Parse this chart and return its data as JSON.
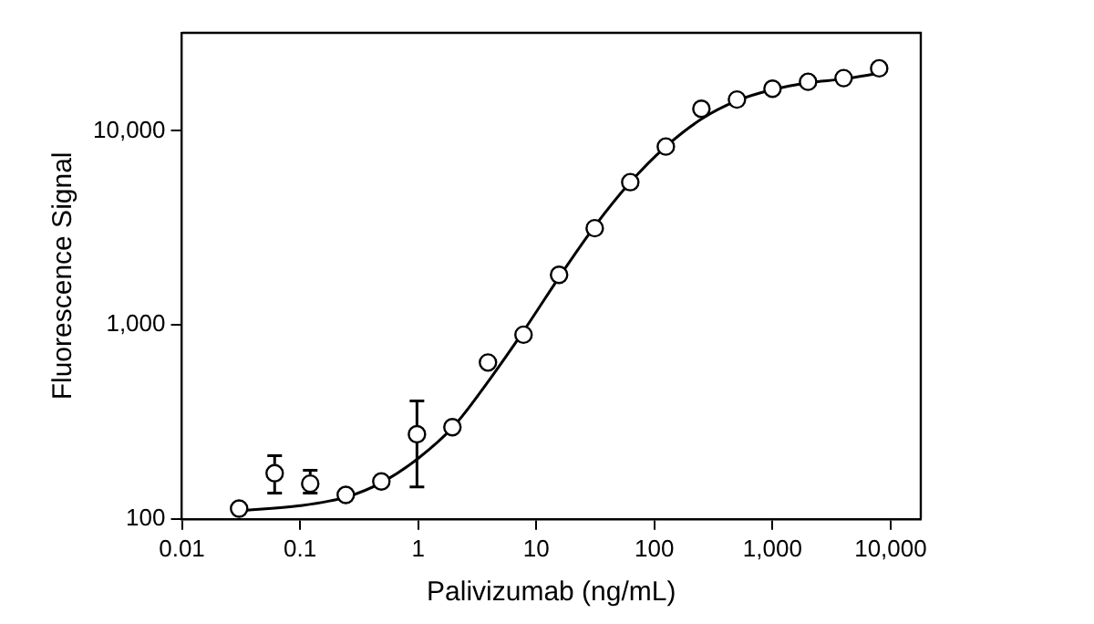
{
  "chart_data": {
    "type": "scatter",
    "xlabel": "Palivizumab (ng/mL)",
    "ylabel": "Fluorescence Signal",
    "log": "xy",
    "grid": false,
    "legend": false,
    "xlim": [
      0.01,
      18000
    ],
    "xticks": [
      0.01,
      0.1,
      1,
      10,
      100,
      {
        "value": 1000,
        "label": "1,000"
      },
      {
        "value": 10000,
        "label": "10,000"
      }
    ],
    "ylim": [
      100,
      32000
    ],
    "yticks": [
      100,
      {
        "value": 1000,
        "label": "1,000"
      },
      {
        "value": 10000,
        "label": "10,000"
      }
    ],
    "series": [
      {
        "marker": "circle",
        "color": "#000000",
        "x": [
          0.0305,
          0.061,
          0.122,
          0.244,
          0.488,
          0.977,
          1.95,
          3.9,
          7.8,
          15.6,
          31.25,
          62.5,
          125,
          250,
          500,
          1000,
          2000,
          4000,
          8000
        ],
        "values": [
          113,
          172,
          152,
          133,
          156,
          273,
          297,
          640,
          890,
          1810,
          3150,
          5440,
          8300,
          13000,
          14500,
          16500,
          17900,
          18700,
          21000
        ],
        "errors": [
          null,
          [
            136,
            212
          ],
          [
            136,
            178
          ],
          null,
          null,
          [
            146,
            406
          ],
          null,
          null,
          null,
          null,
          null,
          null,
          null,
          null,
          null,
          null,
          null,
          null,
          null
        ]
      },
      {
        "type": "line",
        "marker": "none",
        "line_style": "solid",
        "color": "#000000",
        "x": [
          0.03,
          0.1,
          0.25,
          0.5,
          1,
          2,
          4,
          8,
          16,
          31,
          62,
          125,
          250,
          500,
          1000,
          2000,
          4000,
          8000
        ],
        "values": [
          110,
          117,
          130,
          155,
          205,
          300,
          520,
          950,
          1800,
          3200,
          5400,
          8300,
          11500,
          14300,
          16300,
          17700,
          18500,
          19800
        ]
      }
    ]
  }
}
